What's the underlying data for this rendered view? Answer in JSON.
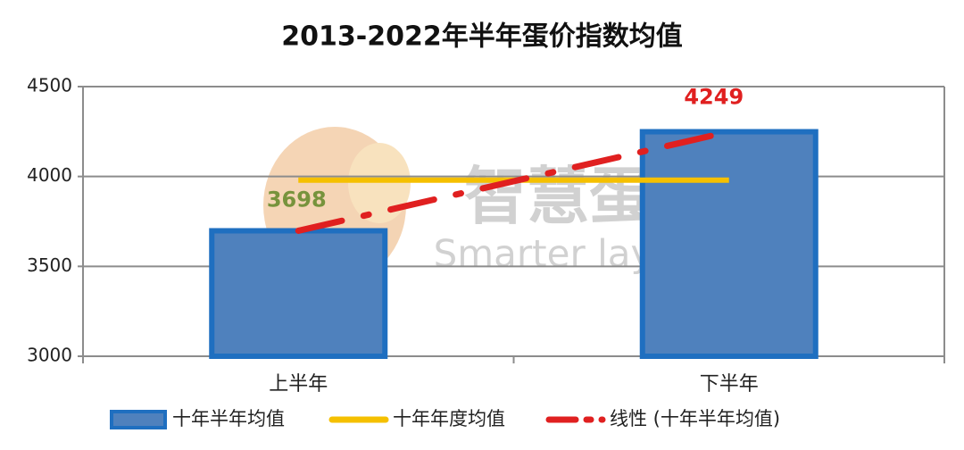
{
  "chart_data": {
    "type": "bar",
    "title": "2013-2022年半年蛋价指数均值",
    "categories": [
      "上半年",
      "下半年"
    ],
    "series": [
      {
        "name": "十年半年均值",
        "type": "bar",
        "color": "#4f81bd",
        "values": [
          3698,
          4249
        ],
        "label_colors": [
          "#77933c",
          "#e02020"
        ]
      },
      {
        "name": "十年年度均值",
        "type": "line",
        "color": "#f5c000",
        "values": [
          3980,
          3980
        ]
      },
      {
        "name": "线性 (十年半年均值)",
        "type": "trend",
        "color": "#e02020",
        "values": [
          3698,
          4249
        ]
      }
    ],
    "ylim": [
      3000,
      4500
    ],
    "yticks": [
      3000,
      3500,
      4000,
      4500
    ],
    "grid": true,
    "legend": "bottom",
    "watermark": {
      "title": "智慧蛋鸡",
      "subtitle": "Smarter layer"
    }
  }
}
